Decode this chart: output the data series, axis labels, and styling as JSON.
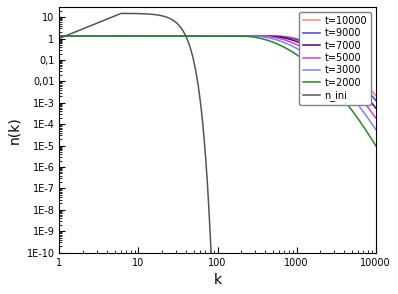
{
  "title": "",
  "xlabel": "k",
  "ylabel": "n(k)",
  "xlim": [
    1,
    10000
  ],
  "ylim": [
    1e-10,
    30
  ],
  "series": [
    {
      "label": "t=10000",
      "color": "#FF8080",
      "cutoff": 560,
      "amplitude": 1.3,
      "steep": 4.5
    },
    {
      "label": "t=9000",
      "color": "#4444DD",
      "cutoff": 500,
      "amplitude": 1.3,
      "steep": 4.5
    },
    {
      "label": "t=7000",
      "color": "#660066",
      "cutoff": 420,
      "amplitude": 1.3,
      "steep": 4.5
    },
    {
      "label": "t=5000",
      "color": "#CC44CC",
      "cutoff": 340,
      "amplitude": 1.3,
      "steep": 4.5
    },
    {
      "label": "t=3000",
      "color": "#7788EE",
      "cutoff": 270,
      "amplitude": 1.3,
      "steep": 4.5
    },
    {
      "label": "t=2000",
      "color": "#228822",
      "cutoff": 200,
      "amplitude": 1.3,
      "steep": 4.5
    }
  ],
  "n_ini": {
    "label": "n_ini",
    "color": "#555555",
    "peak_k": 6,
    "peak_val": 15,
    "rise_exp": 1.5,
    "cutoff": 30,
    "fall_steep": 3.2
  },
  "ytick_vals": [
    10,
    1,
    0.1,
    0.01,
    0.001,
    0.0001,
    1e-05,
    1e-06,
    1e-07,
    1e-08,
    1e-09,
    1e-10
  ],
  "ytick_labels": [
    "10",
    "1",
    "0,1",
    "0,01",
    "1E-3",
    "1E-4",
    "1E-5",
    "1E-6",
    "1E-7",
    "1E-8",
    "1E-9",
    "1E-10"
  ],
  "xtick_vals": [
    1,
    10,
    100,
    1000,
    10000
  ],
  "xtick_labels": [
    "1",
    "10",
    "100",
    "1000",
    "10000"
  ],
  "legend_fontsize": 7,
  "tick_fontsize": 7,
  "axis_fontsize": 10,
  "linewidth": 1.1
}
